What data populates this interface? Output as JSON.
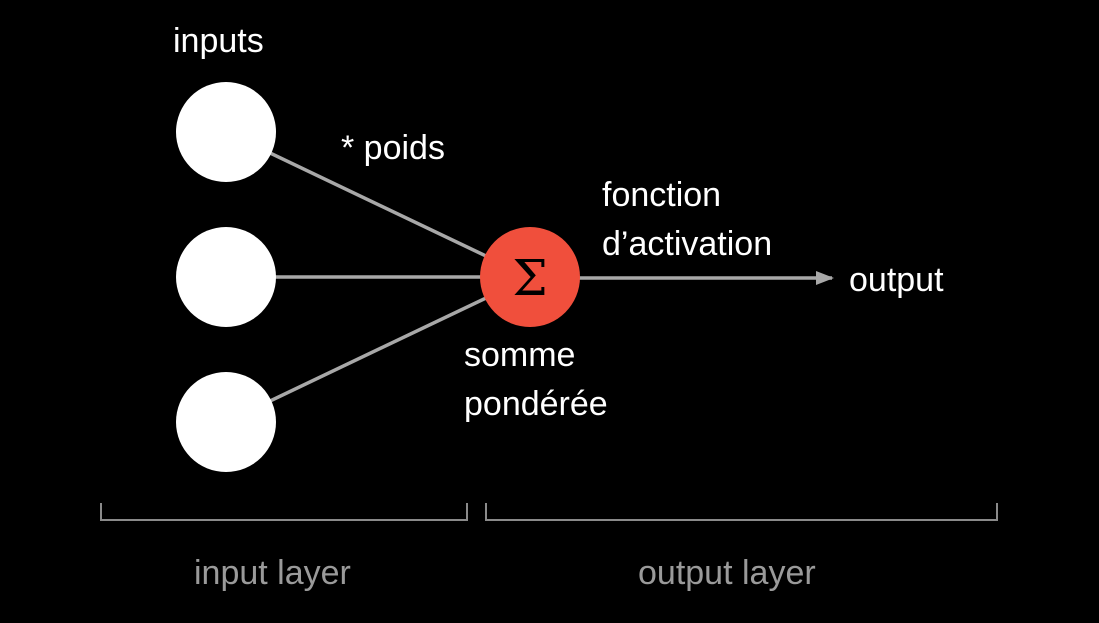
{
  "labels": {
    "inputs": "inputs",
    "weights": "* poids",
    "activation_line1": "fonction",
    "activation_line2": "d’activation",
    "output": "output",
    "sum_line1": "somme",
    "sum_line2": "pondérée",
    "input_layer": "input layer",
    "output_layer": "output layer"
  },
  "sum_symbol": "Σ",
  "colors": {
    "background": "#000000",
    "input_node": "#ffffff",
    "sum_node": "#f04f3c",
    "edges": "#a8a8a8",
    "layer_labels": "#9a9a9a"
  }
}
